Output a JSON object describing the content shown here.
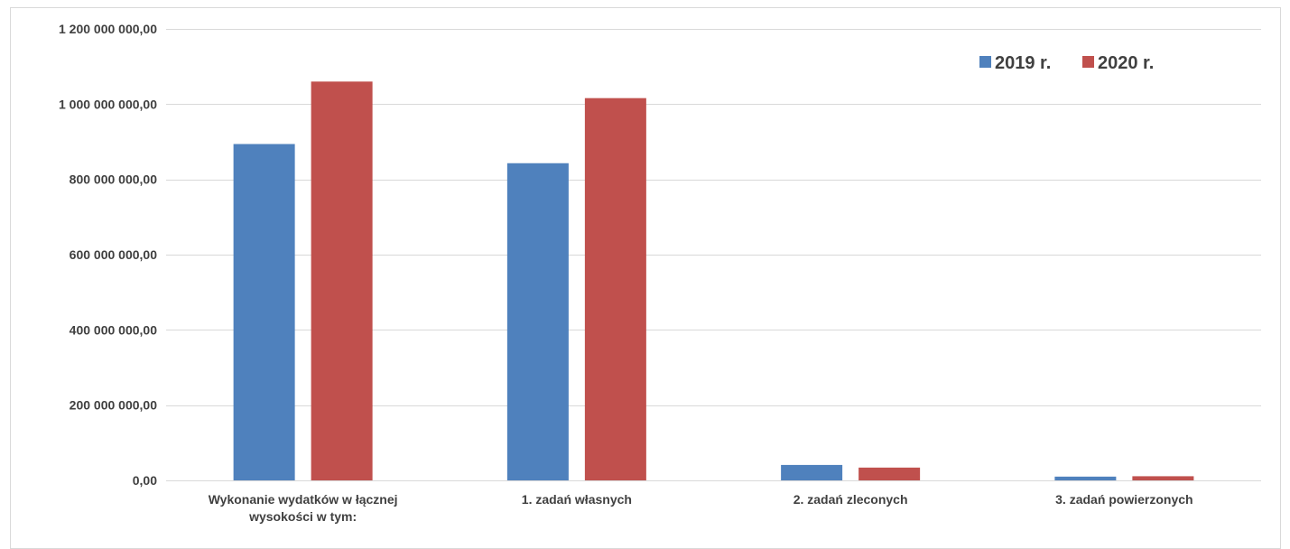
{
  "chart_data": {
    "type": "bar",
    "title": "",
    "xlabel": "",
    "ylabel": "",
    "ylim": [
      0,
      1200000000
    ],
    "y_ticks": [
      {
        "value": 0,
        "label": "0,00"
      },
      {
        "value": 200000000,
        "label": "200 000 000,00"
      },
      {
        "value": 400000000,
        "label": "400 000 000,00"
      },
      {
        "value": 600000000,
        "label": "600 000 000,00"
      },
      {
        "value": 800000000,
        "label": "800 000 000,00"
      },
      {
        "value": 1000000000,
        "label": "1 000 000 000,00"
      },
      {
        "value": 1200000000,
        "label": "1 200 000 000,00"
      }
    ],
    "categories": [
      [
        "Wykonanie wydatków w łącznej",
        "wysokości w tym:"
      ],
      [
        "1. zadań własnych"
      ],
      [
        "2. zadań zleconych"
      ],
      [
        "3. zadań powierzonych"
      ]
    ],
    "series": [
      {
        "name": "2019 r.",
        "color": "#4F81BD",
        "values": [
          894000000,
          843000000,
          41000000,
          10000000
        ]
      },
      {
        "name": "2020 r.",
        "color": "#C0504D",
        "values": [
          1060000000,
          1016000000,
          34000000,
          11000000
        ]
      }
    ],
    "grid": true,
    "gridline_color": "#d9d9d9",
    "legend_position": "top-right"
  }
}
